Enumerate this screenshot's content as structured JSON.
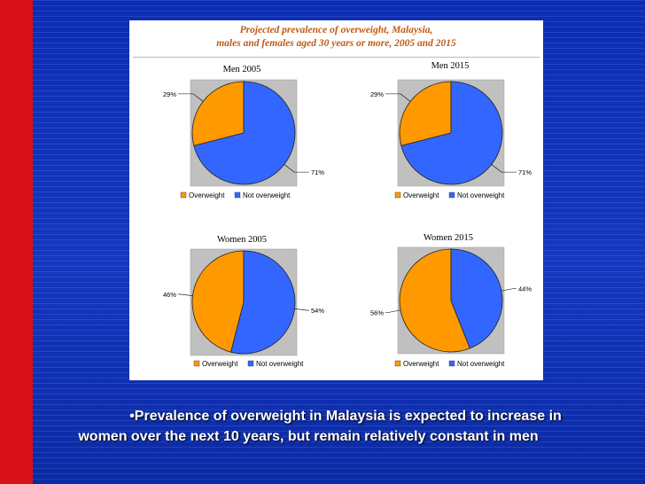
{
  "chart_data": [
    {
      "type": "pie",
      "title": "Men 2005",
      "categories": [
        "Overweight",
        "Not overweight"
      ],
      "values": [
        29,
        71
      ],
      "data_labels": [
        "29%",
        "71%"
      ],
      "legend": "bottom"
    },
    {
      "type": "pie",
      "title": "Men 2015",
      "categories": [
        "Overweight",
        "Not overweight"
      ],
      "values": [
        29,
        71
      ],
      "data_labels": [
        "29%",
        "71%"
      ],
      "legend": "bottom"
    },
    {
      "type": "pie",
      "title": "Women 2005",
      "categories": [
        "Overweight",
        "Not overweight"
      ],
      "values": [
        46,
        54
      ],
      "data_labels": [
        "46%",
        "54%"
      ],
      "legend": "bottom"
    },
    {
      "type": "pie",
      "title": "Women 2015",
      "categories": [
        "Overweight",
        "Not overweight"
      ],
      "values": [
        56,
        44
      ],
      "data_labels": [
        "56%",
        "44%"
      ],
      "legend": "bottom"
    }
  ],
  "figure": {
    "title_line1": "Projected prevalence of overweight, Malaysia,",
    "title_line2": "males and females aged 30 years or more, 2005 and 2015"
  },
  "colors": {
    "overweight": "#ff9900",
    "not_overweight": "#3366ff",
    "plot_bg": "#c0c0c0",
    "title": "#c05a15",
    "slide_bg": "#1437c0",
    "accent_bar": "#d8111b"
  },
  "caption": {
    "line1": "•Prevalence of overweight in Malaysia is expected to increase in",
    "line2": "women over the next 10 years, but remain relatively constant in men"
  }
}
